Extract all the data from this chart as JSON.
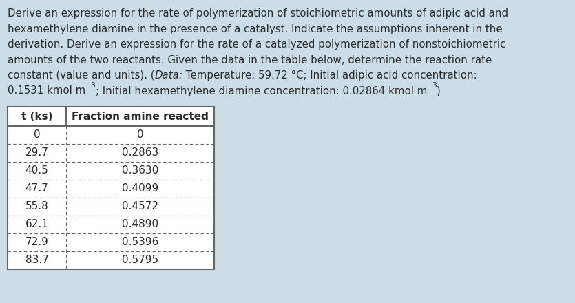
{
  "background_color": "#ccdde8",
  "text_color": "#2a2a2a",
  "table_bg": "#ffffff",
  "table_border_color": "#666666",
  "font_size_para": 10.8,
  "font_size_table_header": 11.0,
  "font_size_table_data": 11.0,
  "line1": "Derive an expression for the rate of polymerization of stoichiometric amounts of adipic acid and",
  "line2": "hexamethylene diamine in the presence of a catalyst. Indicate the assumptions inherent in the",
  "line3": "derivation. Derive an expression for the rate of a catalyzed polymerization of nonstoichiometric",
  "line4": "amounts of the two reactants. Given the data in the table below, determine the reaction rate",
  "line5a": "constant (value and units). (",
  "line5b_italic": "Data:",
  "line5c": " Temperature: 59.72 °C; Initial adipic acid concentration:",
  "line6a": "0.1531 kmol m",
  "line6b_sup": "−3",
  "line6c": "; Initial hexamethylene diamine concentration: 0.02864 kmol m",
  "line6d_sup": "−3",
  "line6e": ")",
  "col1_header": "t (ks)",
  "col2_header": "Fraction amine reacted",
  "table_data": [
    [
      "0",
      "0"
    ],
    [
      "29.7",
      "0.2863"
    ],
    [
      "40.5",
      "0.3630"
    ],
    [
      "47.7",
      "0.4099"
    ],
    [
      "55.8",
      "0.4572"
    ],
    [
      "62.1",
      "0.4890"
    ],
    [
      "72.9",
      "0.5396"
    ],
    [
      "83.7",
      "0.5795"
    ]
  ]
}
